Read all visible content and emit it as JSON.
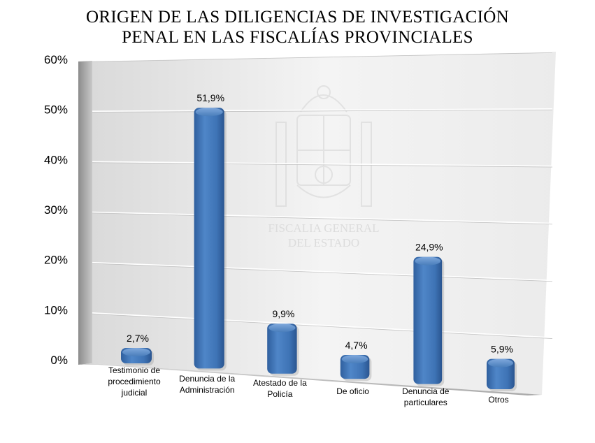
{
  "title": {
    "line1": "ORIGEN DE LAS DILIGENCIAS DE INVESTIGACIÓN",
    "line2": "PENAL EN LAS FISCALÍAS PROVINCIALES"
  },
  "watermark": {
    "icon": "coat-of-arms-icon",
    "line1": "FISCALIA GENERAL",
    "line2": "DEL ESTADO"
  },
  "chart_data": {
    "type": "bar",
    "categories": [
      [
        "Testimonio de",
        "procedimiento",
        "judicial"
      ],
      [
        "Denuncia de la",
        "Administración"
      ],
      [
        "Atestado de la",
        "Policía"
      ],
      [
        "De oficio"
      ],
      [
        "Denuncia de",
        "particulares"
      ],
      [
        "Otros"
      ]
    ],
    "values": [
      2.7,
      51.9,
      9.9,
      4.7,
      24.9,
      5.9
    ],
    "data_labels": [
      "2,7%",
      "51,9%",
      "9,9%",
      "4,7%",
      "24,9%",
      "5,9%"
    ],
    "y_ticks": [
      "0%",
      "10%",
      "20%",
      "30%",
      "40%",
      "50%",
      "60%"
    ],
    "ylim": [
      0,
      60
    ],
    "grid": true,
    "bar_color": "#4a7ebb"
  }
}
